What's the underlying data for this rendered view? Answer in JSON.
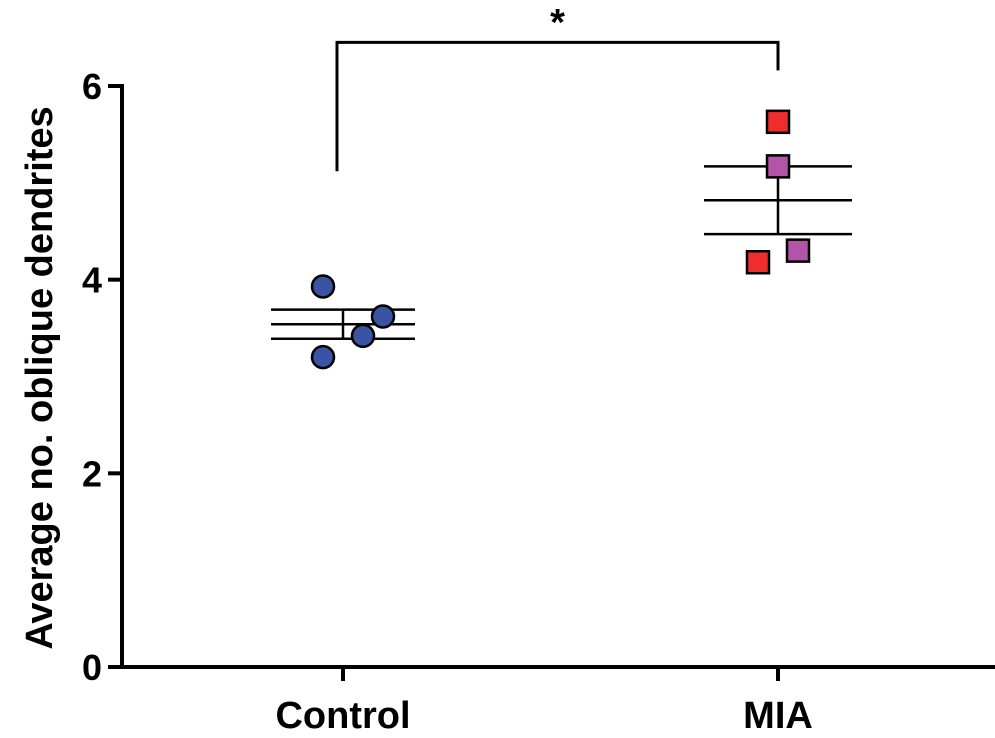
{
  "chart_data": {
    "type": "scatter",
    "title": "",
    "xlabel": "",
    "ylabel": "Average no. oblique dendrites",
    "ylim": [
      0,
      6
    ],
    "yticks": [
      0,
      2,
      4,
      6
    ],
    "grid": false,
    "categories": [
      "Control",
      "MIA"
    ],
    "series": [
      {
        "category": "Control",
        "marker": "circle",
        "points": [
          {
            "offset": -0.2,
            "y": 3.93,
            "color": "#3a53a4"
          },
          {
            "offset": 0.4,
            "y": 3.62,
            "color": "#3a53a4"
          },
          {
            "offset": 0.2,
            "y": 3.42,
            "color": "#3a53a4"
          },
          {
            "offset": -0.2,
            "y": 3.2,
            "color": "#3a53a4"
          }
        ],
        "mean": 3.54,
        "sem_low": 3.39,
        "sem_high": 3.69
      },
      {
        "category": "MIA",
        "marker": "square",
        "points": [
          {
            "offset": 0.0,
            "y": 5.63,
            "color": "#ee2d2f"
          },
          {
            "offset": 0.0,
            "y": 5.17,
            "color": "#b354a8"
          },
          {
            "offset": 0.2,
            "y": 4.3,
            "color": "#b354a8"
          },
          {
            "offset": -0.2,
            "y": 4.18,
            "color": "#ee2d2f"
          }
        ],
        "mean": 4.82,
        "sem_low": 4.47,
        "sem_high": 5.17
      }
    ],
    "significance": {
      "from": "Control",
      "to": "MIA",
      "label": "*",
      "bracket_start_y": 5.12,
      "bracket_y": 6.45
    }
  }
}
